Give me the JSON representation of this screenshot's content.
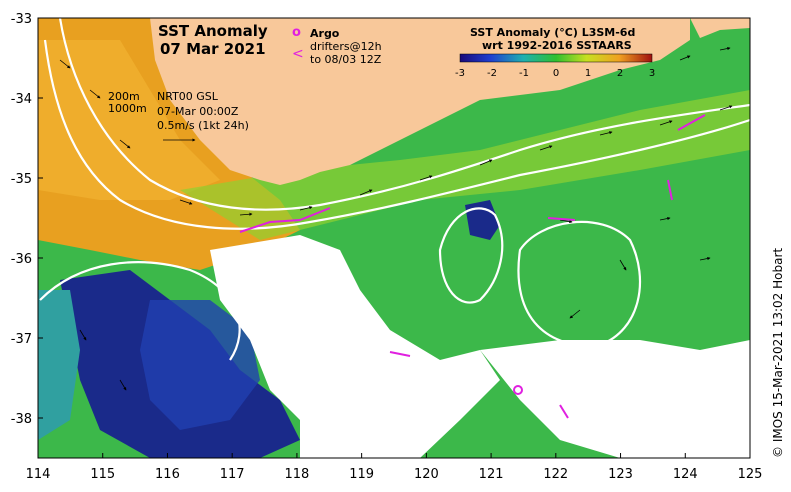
{
  "title": {
    "line1": "SST Anomaly",
    "line2": "07 Mar 2021"
  },
  "argo_legend": {
    "argo_label": "Argo",
    "drifters_label": "drifters@12h",
    "drifters_until": "to 08/03 12Z",
    "argo_symbol": "o",
    "drifter_symbol": "<",
    "marker_color": "#e020e0"
  },
  "colorbar": {
    "title_line1": "SST Anomaly (°C) L3SM-6d",
    "title_line2": "wrt 1992-2016 SSTAARS",
    "ticks": [
      "-3",
      "-2",
      "-1",
      "0",
      "1",
      "2",
      "3"
    ],
    "range": [
      -3,
      3
    ]
  },
  "contour_legend": {
    "depth1": "200m",
    "depth2": "1000m"
  },
  "current_info": {
    "product": "NRT00 GSL",
    "time": "07-Mar 00:00Z",
    "scale": "0.5m/s (1kt 24h)"
  },
  "credit": "© IMOS 15-Mar-2021 13:02 Hobart",
  "axes": {
    "x_ticks": [
      "114",
      "115",
      "116",
      "117",
      "118",
      "119",
      "120",
      "121",
      "122",
      "123",
      "124",
      "125"
    ],
    "y_ticks": [
      "-33",
      "-34",
      "-35",
      "-36",
      "-37",
      "-38"
    ],
    "xlim": [
      114,
      125
    ],
    "ylim": [
      -38.5,
      -33
    ]
  },
  "colors": {
    "land": "#f8c89a",
    "no_data": "#ffffff",
    "contour": "#ffffff",
    "arrows": "#000000"
  }
}
